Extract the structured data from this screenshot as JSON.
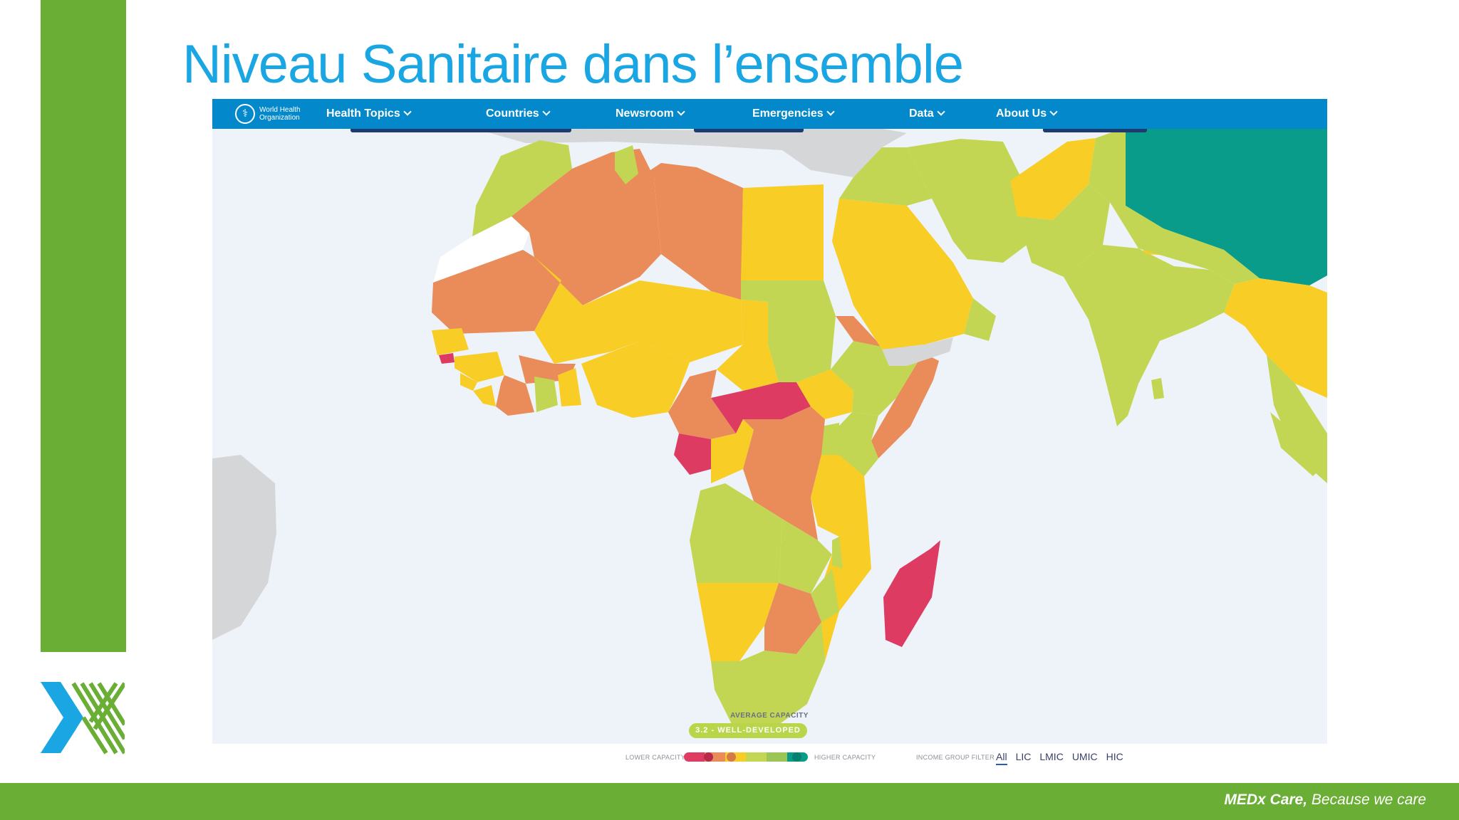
{
  "slide": {
    "title": "Niveau Sanitaire dans l’ensemble",
    "footer_brand": "MEDx Care,",
    "footer_tagline": " Because we care",
    "colors": {
      "green": "#6aae35",
      "title_blue": "#1aa6e3"
    }
  },
  "who": {
    "logo_text": "World Health Organization",
    "nav": [
      "Health Topics",
      "Countries",
      "Newsroom",
      "Emergencies",
      "Data",
      "About Us"
    ]
  },
  "map": {
    "region": "Africa, Middle East and South Asia",
    "capacity_caption": "AVERAGE CAPACITY",
    "capacity_value": "3.2 - WELL-DEVELOPED",
    "legend": {
      "lower": "LOWER CAPACITY",
      "higher": "HIGHER CAPACITY",
      "filter_label": "INCOME GROUP FILTER",
      "filters": [
        "All",
        "LIC",
        "LMIC",
        "UMIC",
        "HIC"
      ],
      "active_filter": "All",
      "scale_colors": [
        "#dd3b62",
        "#e98c59",
        "#f8cd26",
        "#c2d653",
        "#9bc554",
        "#0a9c8a"
      ]
    }
  }
}
